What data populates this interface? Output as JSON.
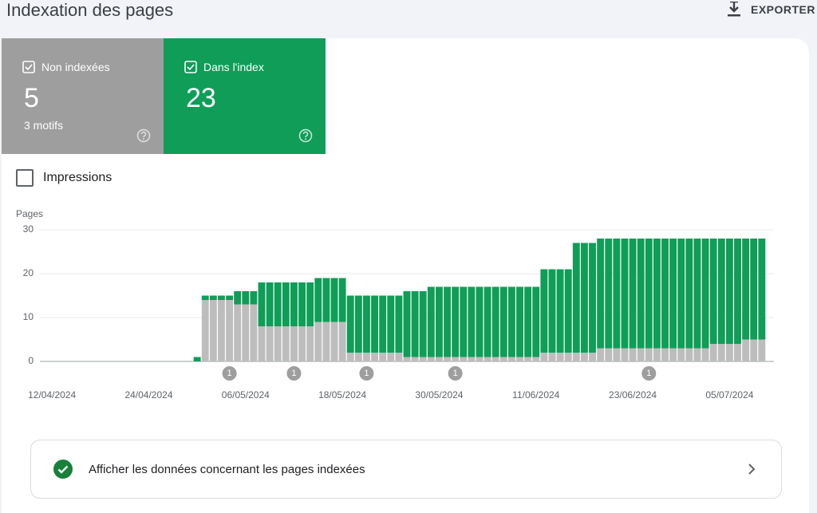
{
  "header": {
    "title": "Indexation des pages",
    "export": "EXPORTER"
  },
  "cards": [
    {
      "label": "Non indexées",
      "value": "5",
      "sub": "3 motifs"
    },
    {
      "label": "Dans l'index",
      "value": "23"
    }
  ],
  "impressions": "Impressions",
  "chart_data": {
    "type": "bar",
    "stacked": true,
    "y_label": "Pages",
    "categories": [
      null,
      "12/04/2024",
      null,
      null,
      null,
      null,
      null,
      null,
      null,
      null,
      null,
      null,
      null,
      "24/04/2024",
      null,
      null,
      null,
      null,
      null,
      null,
      null,
      null,
      null,
      null,
      null,
      "06/05/2024",
      null,
      null,
      null,
      null,
      null,
      null,
      null,
      null,
      null,
      null,
      null,
      "18/05/2024",
      null,
      null,
      null,
      null,
      null,
      null,
      null,
      null,
      null,
      null,
      null,
      "30/05/2024",
      null,
      null,
      null,
      null,
      null,
      null,
      null,
      null,
      null,
      null,
      null,
      "11/06/2024",
      null,
      null,
      null,
      null,
      null,
      null,
      null,
      null,
      null,
      null,
      null,
      "23/06/2024",
      null,
      null,
      null,
      null,
      null,
      null,
      null,
      null,
      null,
      null,
      null,
      "05/07/2024",
      null,
      null,
      null,
      null,
      null
    ],
    "series": [
      {
        "name": "Non indexées",
        "color": "#bdbdbd",
        "values": [
          null,
          null,
          null,
          null,
          null,
          null,
          null,
          null,
          null,
          null,
          null,
          null,
          null,
          null,
          null,
          null,
          null,
          null,
          null,
          0,
          14,
          14,
          14,
          14,
          13,
          13,
          13,
          8,
          8,
          8,
          8,
          8,
          8,
          8,
          9,
          9,
          9,
          9,
          2,
          2,
          2,
          2,
          2,
          2,
          2,
          1,
          1,
          1,
          1,
          1,
          1,
          1,
          1,
          1,
          1,
          1,
          1,
          1,
          1,
          1,
          1,
          1,
          2,
          2,
          2,
          2,
          2,
          2,
          2,
          3,
          3,
          3,
          3,
          3,
          3,
          3,
          3,
          3,
          3,
          3,
          3,
          3,
          3,
          4,
          4,
          4,
          4,
          5,
          5,
          5,
          null
        ]
      },
      {
        "name": "Dans l'index",
        "color": "#0f9d58",
        "values": [
          null,
          null,
          null,
          null,
          null,
          null,
          null,
          null,
          null,
          null,
          null,
          null,
          null,
          null,
          null,
          null,
          null,
          null,
          null,
          1,
          1,
          1,
          1,
          1,
          3,
          3,
          3,
          10,
          10,
          10,
          10,
          10,
          10,
          10,
          10,
          10,
          10,
          10,
          13,
          13,
          13,
          13,
          13,
          13,
          13,
          15,
          15,
          15,
          16,
          16,
          16,
          16,
          16,
          16,
          16,
          16,
          16,
          16,
          16,
          16,
          16,
          16,
          19,
          19,
          19,
          19,
          25,
          25,
          25,
          25,
          25,
          25,
          25,
          25,
          25,
          25,
          25,
          25,
          25,
          25,
          25,
          25,
          25,
          24,
          24,
          24,
          24,
          23,
          23,
          23,
          null
        ]
      }
    ],
    "ylim": [
      0,
      30
    ],
    "yticks": [
      0,
      10,
      20,
      30
    ],
    "grid": true,
    "annotations": [
      {
        "index": 23,
        "label": "1"
      },
      {
        "index": 31,
        "label": "1"
      },
      {
        "index": 40,
        "label": "1"
      },
      {
        "index": 51,
        "label": "1"
      },
      {
        "index": 75,
        "label": "1"
      }
    ]
  },
  "link": {
    "text": "Afficher les données concernant les pages indexées"
  }
}
